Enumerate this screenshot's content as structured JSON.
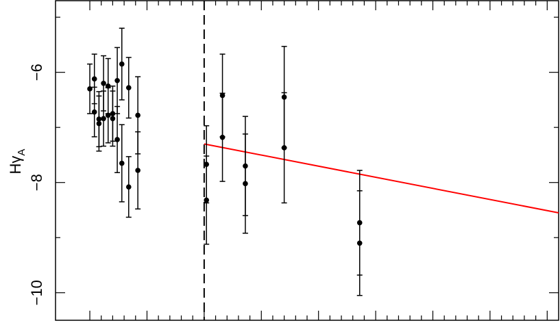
{
  "chart_data": {
    "type": "scatter",
    "title": "",
    "xlabel": "",
    "ylabel": {
      "main": "Hγ",
      "sub": "A"
    },
    "xlim": [
      0,
      22
    ],
    "ylim": [
      -10.5,
      -4.7
    ],
    "y_ticks": [
      -6,
      -8,
      -10
    ],
    "y_tick_labels": [
      "−6",
      "−8",
      "−10"
    ],
    "x_major_ticks": [
      1.5,
      4.0,
      6.5,
      9.0,
      11.5,
      14.0,
      16.5,
      19.0,
      21.5
    ],
    "x_minor_ticks": [
      2.0,
      2.5,
      3.0,
      3.5,
      4.5,
      5.0,
      5.5,
      6.0,
      7.0,
      7.5,
      8.0,
      8.5,
      9.5,
      10.0,
      10.5,
      11.0,
      12.0,
      12.5,
      13.0,
      13.5,
      14.5,
      15.0,
      15.5,
      16.0,
      17.0,
      17.5,
      18.0,
      18.5,
      19.5,
      20.0,
      20.5,
      21.0
    ],
    "grid": false,
    "legend": "none",
    "divider_x": 6.5,
    "fit_line": {
      "color": "#ff0000",
      "x": [
        6.5,
        22.0
      ],
      "y": [
        -7.3,
        -8.55
      ]
    },
    "points": [
      {
        "x": 1.5,
        "y": -6.3,
        "err": 0.45
      },
      {
        "x": 1.7,
        "y": -6.12,
        "err": 0.45
      },
      {
        "x": 1.7,
        "y": -6.72,
        "err": 0.45
      },
      {
        "x": 1.9,
        "y": -6.85,
        "err": 0.5
      },
      {
        "x": 1.9,
        "y": -6.93,
        "err": 0.5
      },
      {
        "x": 2.1,
        "y": -6.2,
        "err": 0.5
      },
      {
        "x": 2.1,
        "y": -6.84,
        "err": 0.5
      },
      {
        "x": 2.3,
        "y": -6.25,
        "err": 0.5
      },
      {
        "x": 2.3,
        "y": -6.78,
        "err": 0.5
      },
      {
        "x": 2.5,
        "y": -6.75,
        "err": 0.5
      },
      {
        "x": 2.5,
        "y": -6.84,
        "err": 0.5
      },
      {
        "x": 2.7,
        "y": -6.15,
        "err": 0.6
      },
      {
        "x": 2.7,
        "y": -7.22,
        "err": 0.6
      },
      {
        "x": 2.9,
        "y": -5.85,
        "err": 0.65
      },
      {
        "x": 2.9,
        "y": -7.65,
        "err": 0.7
      },
      {
        "x": 3.2,
        "y": -6.28,
        "err": 0.55
      },
      {
        "x": 3.2,
        "y": -8.08,
        "err": 0.55
      },
      {
        "x": 3.6,
        "y": -6.78,
        "err": 0.7
      },
      {
        "x": 3.6,
        "y": -7.78,
        "err": 0.7
      },
      {
        "x": 6.6,
        "y": -7.67,
        "err": 0.7
      },
      {
        "x": 6.6,
        "y": -8.32,
        "err": 0.8
      },
      {
        "x": 7.3,
        "y": -6.42,
        "err": 0.75
      },
      {
        "x": 7.3,
        "y": -7.18,
        "err": 0.8
      },
      {
        "x": 8.3,
        "y": -7.7,
        "err": 0.9
      },
      {
        "x": 8.3,
        "y": -8.02,
        "err": 0.9
      },
      {
        "x": 10.0,
        "y": -6.45,
        "err": 0.92
      },
      {
        "x": 10.0,
        "y": -7.37,
        "err": 1.0
      },
      {
        "x": 13.3,
        "y": -8.73,
        "err": 0.95
      },
      {
        "x": 13.3,
        "y": -9.1,
        "err": 0.95
      }
    ]
  }
}
